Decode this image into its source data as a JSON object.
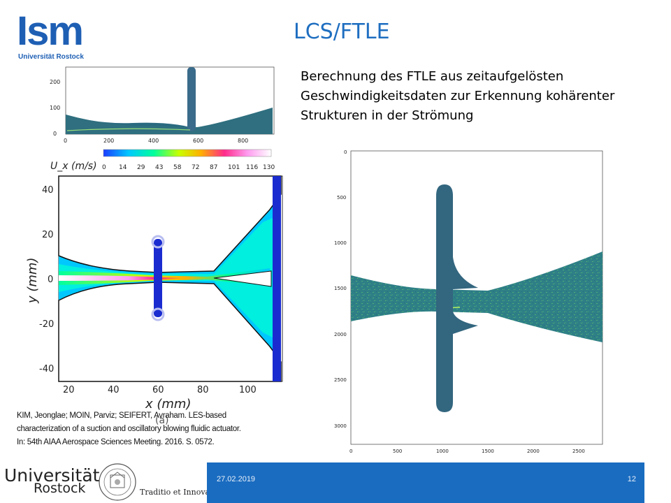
{
  "logo": {
    "main": "Ism",
    "sub": "Universität Rostock"
  },
  "title": "LCS/FTLE",
  "description": "Berechnung des FTLE aus zeitaufgelösten Geschwindigkeitsdaten zur Erkennung kohärenter Strukturen in der Strömung",
  "top_figure": {
    "x_ticks": [
      "0",
      "200",
      "400",
      "600",
      "800"
    ],
    "y_ticks": [
      "0",
      "100",
      "200"
    ]
  },
  "colorbar": {
    "label": "U_x (m/s)",
    "ticks": [
      "0",
      "14",
      "29",
      "43",
      "58",
      "72",
      "87",
      "101",
      "116",
      "130"
    ]
  },
  "velocity_plot": {
    "xlabel": "x (mm)",
    "ylabel": "y (mm)",
    "x_ticks": [
      "20",
      "40",
      "60",
      "80",
      "100"
    ],
    "y_ticks": [
      "40",
      "20",
      "0",
      "-20",
      "-40"
    ],
    "panel_label": "(a)"
  },
  "ftle_plot": {
    "x_ticks": [
      "0",
      "500",
      "1000",
      "1500",
      "2000",
      "2500"
    ],
    "y_ticks": [
      "0",
      "500",
      "1000",
      "1500",
      "2000",
      "2500",
      "3000"
    ]
  },
  "citation": "KIM, Jeonglae; MOIN, Parviz; SEIFERT, Avraham. LES-based characterization of a suction and oscillatory blowing fluidic actuator. In: 54th AIAA Aerospace Sciences Meeting. 2016. S. 0572.",
  "footer": {
    "date": "27.02.2019",
    "page": "12",
    "university_line1": "Universität",
    "university_line2": "Rostock",
    "motto": "Traditio et Innovatio"
  },
  "colors": {
    "brand_blue": "#1e5fb4",
    "footer_blue": "#1a6cc0",
    "flow_teal": "#2f6f7f"
  }
}
